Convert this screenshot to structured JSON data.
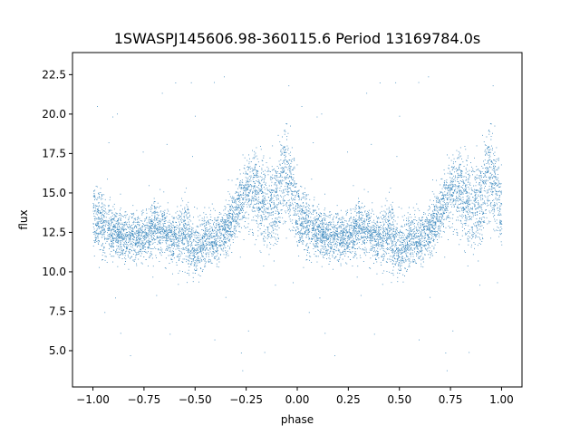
{
  "chart_data": {
    "type": "scatter",
    "title": "1SWASPJ145606.98-360115.6 Period 13169784.0s",
    "xlabel": "phase",
    "ylabel": "flux",
    "xlim": [
      -1.1,
      1.1
    ],
    "ylim": [
      2.7,
      23.9
    ],
    "x_ticks": [
      -1.0,
      -0.75,
      -0.5,
      -0.25,
      0.0,
      0.25,
      0.5,
      0.75,
      1.0
    ],
    "x_tick_labels": [
      "−1.00",
      "−0.75",
      "−0.50",
      "−0.25",
      "0.00",
      "0.25",
      "0.50",
      "0.75",
      "1.00"
    ],
    "y_ticks": [
      5.0,
      7.5,
      10.0,
      12.5,
      15.0,
      17.5,
      20.0,
      22.5
    ],
    "y_tick_labels": [
      "5.0",
      "7.5",
      "10.0",
      "12.5",
      "15.0",
      "17.5",
      "20.0",
      "22.5"
    ],
    "grid": false,
    "legend": "none",
    "marker_color": "#1f77b4",
    "series": [
      {
        "x_range": [
          -1.0,
          1.0
        ],
        "folded_period": 1.0,
        "profile": [
          {
            "x": 0.0,
            "y": 13.5,
            "spread": 2.0
          },
          {
            "x": 0.05,
            "y": 13.0,
            "spread": 1.6
          },
          {
            "x": 0.1,
            "y": 12.6,
            "spread": 1.4
          },
          {
            "x": 0.15,
            "y": 12.2,
            "spread": 1.2
          },
          {
            "x": 0.2,
            "y": 12.3,
            "spread": 1.4
          },
          {
            "x": 0.25,
            "y": 12.0,
            "spread": 1.2
          },
          {
            "x": 0.3,
            "y": 13.0,
            "spread": 1.6
          },
          {
            "x": 0.35,
            "y": 12.5,
            "spread": 1.3
          },
          {
            "x": 0.4,
            "y": 12.0,
            "spread": 1.4
          },
          {
            "x": 0.45,
            "y": 12.5,
            "spread": 2.0
          },
          {
            "x": 0.5,
            "y": 11.2,
            "spread": 1.5
          },
          {
            "x": 0.55,
            "y": 12.0,
            "spread": 1.6
          },
          {
            "x": 0.6,
            "y": 12.0,
            "spread": 1.3
          },
          {
            "x": 0.65,
            "y": 12.8,
            "spread": 1.4
          },
          {
            "x": 0.7,
            "y": 13.8,
            "spread": 1.5
          },
          {
            "x": 0.75,
            "y": 15.2,
            "spread": 1.8
          },
          {
            "x": 0.8,
            "y": 15.0,
            "spread": 2.2
          },
          {
            "x": 0.85,
            "y": 14.0,
            "spread": 2.5
          },
          {
            "x": 0.9,
            "y": 14.5,
            "spread": 2.8
          },
          {
            "x": 0.93,
            "y": 16.5,
            "spread": 2.6
          },
          {
            "x": 0.97,
            "y": 15.5,
            "spread": 2.5
          },
          {
            "x": 1.0,
            "y": 13.5,
            "spread": 2.0
          }
        ],
        "n_points": 9000,
        "outlier_fraction": 0.01,
        "outlier_y_range": [
          3.5,
          22.5
        ]
      }
    ]
  }
}
